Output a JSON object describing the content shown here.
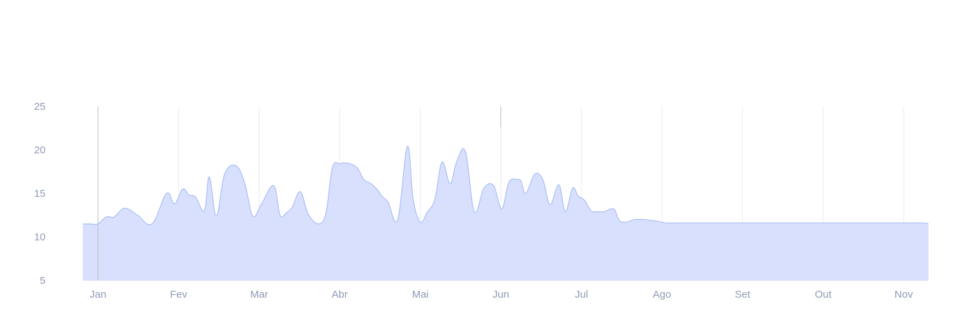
{
  "colors": {
    "area_fill": "#d8e0fd",
    "area_stroke": "#a9bff4",
    "gridline": "#e7ebf3",
    "marker_line": "#b9bec8",
    "tick_text": "#8e9ab5"
  },
  "chart_data": {
    "type": "area",
    "title": "",
    "xlabel": "",
    "ylabel": "",
    "ylim": [
      5,
      25
    ],
    "yticks": [
      5,
      10,
      15,
      20,
      25
    ],
    "x_tick_labels": [
      "Jan",
      "Fev",
      "Mar",
      "Abr",
      "Mai",
      "Jun",
      "Jul",
      "Ago",
      "Set",
      "Out",
      "Nov"
    ],
    "grid": "vertical at month ticks",
    "legend": "none",
    "series": [
      {
        "x": [
          -0.19,
          -0.1,
          0,
          0.1,
          0.2,
          0.33,
          0.49,
          0.67,
          0.85,
          0.95,
          1.05,
          1.13,
          1.21,
          1.32,
          1.38,
          1.47,
          1.57,
          1.71,
          1.82,
          1.92,
          2.03,
          2.18,
          2.26,
          2.34,
          2.41,
          2.51,
          2.61,
          2.74,
          2.83,
          2.91,
          3.0,
          3.05,
          3.13,
          3.22,
          3.3,
          3.39,
          3.46,
          3.53,
          3.6,
          3.72,
          3.84,
          3.91,
          4.0,
          4.09,
          4.18,
          4.27,
          4.37,
          4.45,
          4.56,
          4.67,
          4.79,
          4.91,
          5.01,
          5.1,
          5.2,
          5.25,
          5.31,
          5.42,
          5.52,
          5.61,
          5.72,
          5.8,
          5.89,
          5.96,
          6.04,
          6.12,
          6.2,
          6.28,
          6.4,
          6.47,
          6.55,
          6.66,
          6.78,
          6.87,
          6.95,
          7.05,
          7.16,
          7.27,
          7.33,
          7.41,
          7.5,
          7.57,
          7.66,
          7.75,
          7.87,
          7.98,
          8.06,
          8.15,
          8.25,
          8.34,
          8.44,
          8.54,
          8.63,
          8.72,
          8.83,
          9.0,
          9.14,
          9.25,
          9.43,
          9.55,
          9.66,
          9.78,
          9.92,
          10.08,
          10.25,
          10.41
        ],
        "values": [
          11.5,
          11.5,
          11.5,
          12.3,
          12.3,
          13.3,
          12.5,
          11.5,
          15.0,
          13.8,
          15.5,
          14.8,
          14.6,
          13.0,
          16.9,
          12.4,
          17.2,
          18.2,
          16.2,
          12.4,
          13.8,
          15.9,
          12.5,
          12.8,
          13.4,
          15.2,
          12.6,
          11.5,
          12.8,
          18.0,
          18.4,
          18.5,
          18.4,
          17.9,
          16.6,
          16.1,
          15.5,
          14.6,
          14.0,
          12.0,
          20.4,
          14.4,
          11.7,
          12.9,
          14.3,
          18.6,
          16.1,
          18.6,
          19.8,
          12.9,
          15.6,
          15.9,
          13.2,
          16.3,
          16.6,
          16.4,
          15.0,
          17.2,
          16.6,
          13.7,
          16.0,
          12.9,
          15.6,
          14.7,
          14.2,
          13.0,
          12.9,
          12.9,
          13.2,
          11.9,
          11.7,
          12.0,
          12.0,
          11.9,
          11.8,
          11.6,
          11.6,
          11.6,
          11.6,
          11.6,
          11.6,
          11.6,
          11.6,
          11.6,
          11.6,
          11.6,
          11.6,
          11.6,
          11.6,
          11.6,
          11.6,
          11.6,
          11.6,
          11.6,
          11.6,
          11.6,
          11.6,
          11.6,
          11.6,
          11.6,
          11.6,
          11.6,
          11.6,
          11.6,
          11.6,
          11.5
        ]
      }
    ]
  }
}
